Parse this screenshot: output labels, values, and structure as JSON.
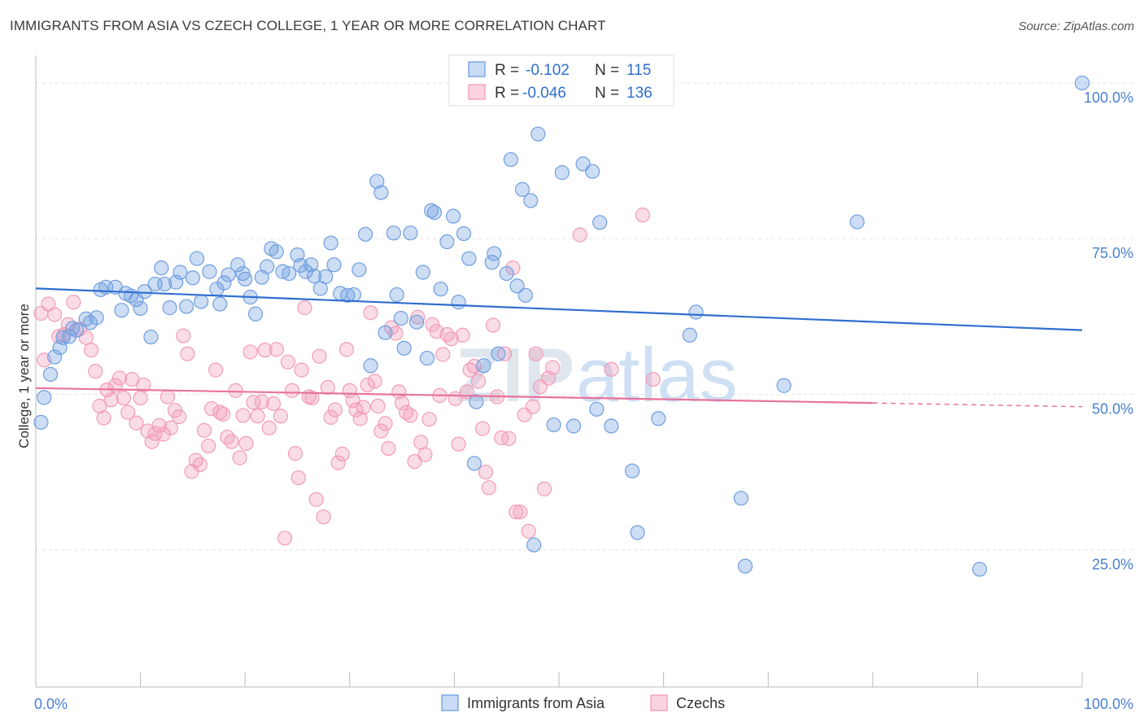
{
  "title": "IMMIGRANTS FROM ASIA VS CZECH COLLEGE, 1 YEAR OR MORE CORRELATION CHART",
  "source": "Source: ZipAtlas.com",
  "colors": {
    "blue": "#6f9fe0",
    "blue_line": "#2f6fd0",
    "pink": "#f29cb8",
    "pink_line": "#e8739b",
    "tick_text": "#4a7fd0"
  },
  "legend": {
    "rows": [
      {
        "r_label": "R =",
        "r_value": "-0.102",
        "n_label": "N =",
        "n_value": "115"
      },
      {
        "r_label": "R =",
        "r_value": "-0.046",
        "n_label": "N =",
        "n_value": "136"
      }
    ]
  },
  "watermark": {
    "zip": "ZIP",
    "atlas": "atlas"
  },
  "chart_data": {
    "type": "scatter",
    "title": "IMMIGRANTS FROM ASIA VS CZECH COLLEGE, 1 YEAR OR MORE CORRELATION CHART",
    "xlabel": "",
    "ylabel": "College, 1 year or more",
    "xlim": [
      0,
      100
    ],
    "ylim": [
      3,
      103
    ],
    "x_tick_labels": [
      {
        "value": 0,
        "label": "0.0%"
      },
      {
        "value": 100,
        "label": "100.0%"
      }
    ],
    "y_tick_labels": [
      {
        "value": 25,
        "label": "25.0%"
      },
      {
        "value": 50,
        "label": "50.0%"
      },
      {
        "value": 75,
        "label": "75.0%"
      },
      {
        "value": 100,
        "label": "100.0%"
      }
    ],
    "grid": true,
    "legend_position": "top-center",
    "series": [
      {
        "name": "Immigrants from Asia",
        "color": "#6f9fe0",
        "trend": {
          "x": [
            0,
            100
          ],
          "y": [
            67,
            60.3
          ]
        },
        "points": [
          [
            0.5,
            45.5
          ],
          [
            0.8,
            49.5
          ],
          [
            1.4,
            53.2
          ],
          [
            1.8,
            56
          ],
          [
            2.3,
            57.5
          ],
          [
            2.6,
            59.1
          ],
          [
            3.2,
            59.3
          ],
          [
            3.5,
            60.6
          ],
          [
            3.9,
            60.3
          ],
          [
            4.8,
            62.1
          ],
          [
            5.2,
            61.5
          ],
          [
            5.8,
            62.3
          ],
          [
            6.2,
            66.8
          ],
          [
            6.7,
            67.2
          ],
          [
            7.6,
            67.2
          ],
          [
            8.2,
            63.5
          ],
          [
            8.6,
            66.2
          ],
          [
            9.1,
            65.8
          ],
          [
            9.6,
            65.2
          ],
          [
            10,
            63.8
          ],
          [
            10.4,
            66.5
          ],
          [
            11,
            59.2
          ],
          [
            11.4,
            67.7
          ],
          [
            12,
            70.3
          ],
          [
            12.3,
            67.7
          ],
          [
            12.8,
            63.9
          ],
          [
            13.4,
            68
          ],
          [
            13.8,
            69.6
          ],
          [
            14.4,
            64.1
          ],
          [
            15,
            68.7
          ],
          [
            15.4,
            71.8
          ],
          [
            15.8,
            64.9
          ],
          [
            16.6,
            69.7
          ],
          [
            17.3,
            66.9
          ],
          [
            17.6,
            64.5
          ],
          [
            18,
            67.9
          ],
          [
            18.4,
            69.2
          ],
          [
            19.3,
            70.8
          ],
          [
            19.8,
            69.4
          ],
          [
            20,
            68.5
          ],
          [
            20.5,
            65.6
          ],
          [
            21,
            62.9
          ],
          [
            21.6,
            68.8
          ],
          [
            22.1,
            70.5
          ],
          [
            22.5,
            73.4
          ],
          [
            23,
            72.9
          ],
          [
            23.6,
            69.7
          ],
          [
            24.2,
            69.4
          ],
          [
            25,
            72.4
          ],
          [
            25.3,
            70.7
          ],
          [
            25.8,
            69.7
          ],
          [
            26.3,
            70.8
          ],
          [
            26.6,
            69
          ],
          [
            27.2,
            67
          ],
          [
            27.7,
            68.9
          ],
          [
            28.2,
            74.3
          ],
          [
            28.5,
            70.8
          ],
          [
            29.1,
            66.2
          ],
          [
            29.8,
            65.9
          ],
          [
            30.4,
            66
          ],
          [
            30.9,
            70
          ],
          [
            31.5,
            75.7
          ],
          [
            32,
            54.6
          ],
          [
            32.6,
            84.2
          ],
          [
            33,
            82.4
          ],
          [
            33.4,
            59.9
          ],
          [
            34.2,
            75.9
          ],
          [
            34.5,
            66
          ],
          [
            34.9,
            62.2
          ],
          [
            35.2,
            57.4
          ],
          [
            35.8,
            75.9
          ],
          [
            36.4,
            61.6
          ],
          [
            37,
            69.6
          ],
          [
            37.4,
            55.8
          ],
          [
            37.8,
            79.5
          ],
          [
            38.1,
            79.2
          ],
          [
            38.7,
            66.9
          ],
          [
            39.3,
            74.5
          ],
          [
            39.9,
            78.6
          ],
          [
            40.4,
            64.8
          ],
          [
            40.9,
            75.8
          ],
          [
            41.4,
            71.8
          ],
          [
            41.9,
            38.9
          ],
          [
            42.1,
            48.8
          ],
          [
            42.8,
            54.6
          ],
          [
            43.6,
            71.2
          ],
          [
            43.8,
            72.6
          ],
          [
            44.2,
            56.5
          ],
          [
            45,
            69.4
          ],
          [
            45.4,
            87.7
          ],
          [
            46,
            67.4
          ],
          [
            46.5,
            82.9
          ],
          [
            46.8,
            65.9
          ],
          [
            47.3,
            81.1
          ],
          [
            47.6,
            25.8
          ],
          [
            48,
            91.8
          ],
          [
            49.5,
            45.1
          ],
          [
            50.3,
            85.6
          ],
          [
            51.4,
            44.9
          ],
          [
            52.3,
            87
          ],
          [
            53.2,
            85.8
          ],
          [
            53.6,
            47.6
          ],
          [
            53.9,
            77.6
          ],
          [
            55,
            44.9
          ],
          [
            57,
            37.7
          ],
          [
            57.5,
            27.8
          ],
          [
            59.5,
            46.1
          ],
          [
            62.5,
            59.5
          ],
          [
            63.1,
            63.2
          ],
          [
            67.4,
            33.3
          ],
          [
            67.8,
            22.4
          ],
          [
            71.5,
            51.4
          ],
          [
            78.5,
            77.7
          ],
          [
            90.2,
            21.9
          ],
          [
            100,
            100
          ]
        ]
      },
      {
        "name": "Czechs",
        "color": "#f29cb8",
        "trend": {
          "x": [
            0,
            80
          ],
          "y": [
            51,
            48.6
          ]
        },
        "trend_dashed": {
          "x": [
            80,
            100
          ],
          "y": [
            48.6,
            48
          ]
        },
        "points": [
          [
            0.5,
            63
          ],
          [
            0.8,
            55.5
          ],
          [
            1.2,
            64.5
          ],
          [
            1.8,
            62.8
          ],
          [
            2.2,
            59.3
          ],
          [
            2.7,
            59.6
          ],
          [
            3.1,
            61.2
          ],
          [
            3.6,
            64.8
          ],
          [
            4.2,
            60.5
          ],
          [
            4.8,
            59.1
          ],
          [
            5.3,
            57.1
          ],
          [
            5.7,
            53.7
          ],
          [
            6.1,
            48.1
          ],
          [
            6.5,
            46.2
          ],
          [
            6.8,
            50.7
          ],
          [
            7.2,
            49.1
          ],
          [
            7.6,
            51.4
          ],
          [
            8,
            52.6
          ],
          [
            8.4,
            49.4
          ],
          [
            8.8,
            47.1
          ],
          [
            9.2,
            52.4
          ],
          [
            9.6,
            45.4
          ],
          [
            10,
            49.4
          ],
          [
            10.3,
            51.5
          ],
          [
            10.7,
            44.1
          ],
          [
            11.1,
            42.4
          ],
          [
            11.4,
            43.7
          ],
          [
            11.8,
            45
          ],
          [
            12.2,
            43.6
          ],
          [
            12.6,
            49.6
          ],
          [
            12.9,
            44.6
          ],
          [
            13.3,
            47.4
          ],
          [
            13.7,
            46.4
          ],
          [
            14.1,
            59.4
          ],
          [
            14.5,
            56.5
          ],
          [
            14.9,
            37.6
          ],
          [
            15.3,
            39.4
          ],
          [
            15.7,
            38.7
          ],
          [
            16.1,
            44.2
          ],
          [
            16.5,
            41.7
          ],
          [
            16.8,
            47.7
          ],
          [
            17.2,
            53.9
          ],
          [
            17.6,
            47.1
          ],
          [
            17.9,
            46.8
          ],
          [
            18.3,
            43.1
          ],
          [
            18.7,
            42.4
          ],
          [
            19.1,
            50.6
          ],
          [
            19.5,
            39.8
          ],
          [
            19.8,
            46.6
          ],
          [
            20.1,
            42.1
          ],
          [
            20.5,
            56.8
          ],
          [
            20.8,
            48.7
          ],
          [
            21.2,
            46.5
          ],
          [
            21.6,
            48.8
          ],
          [
            21.9,
            57.1
          ],
          [
            22.3,
            44.6
          ],
          [
            22.7,
            48.5
          ],
          [
            23,
            57.2
          ],
          [
            23.4,
            46.5
          ],
          [
            23.8,
            26.9
          ],
          [
            24.1,
            55.2
          ],
          [
            24.5,
            50.6
          ],
          [
            24.8,
            40.5
          ],
          [
            25.1,
            36.6
          ],
          [
            25.4,
            53.9
          ],
          [
            25.7,
            63.9
          ],
          [
            26.1,
            49.6
          ],
          [
            26.4,
            49.4
          ],
          [
            26.8,
            33.1
          ],
          [
            27.1,
            56.1
          ],
          [
            27.5,
            30.3
          ],
          [
            27.9,
            51.1
          ],
          [
            28.2,
            46.3
          ],
          [
            28.6,
            47.5
          ],
          [
            28.9,
            39
          ],
          [
            29.3,
            40.4
          ],
          [
            29.7,
            57.2
          ],
          [
            30,
            50.6
          ],
          [
            30.3,
            49
          ],
          [
            30.6,
            47.5
          ],
          [
            31,
            46.1
          ],
          [
            31.3,
            47.9
          ],
          [
            31.7,
            51.5
          ],
          [
            32,
            63.1
          ],
          [
            32.4,
            52.1
          ],
          [
            32.7,
            48.1
          ],
          [
            33,
            44.1
          ],
          [
            33.4,
            45.3
          ],
          [
            33.7,
            41.3
          ],
          [
            34,
            60.7
          ],
          [
            34.4,
            59.8
          ],
          [
            34.7,
            50.4
          ],
          [
            35,
            48.6
          ],
          [
            35.4,
            47.1
          ],
          [
            35.8,
            46.6
          ],
          [
            36.2,
            39.2
          ],
          [
            36.5,
            62.4
          ],
          [
            36.8,
            42.3
          ],
          [
            37.2,
            40.3
          ],
          [
            37.6,
            46
          ],
          [
            37.9,
            61.2
          ],
          [
            38.3,
            60.1
          ],
          [
            38.6,
            49.8
          ],
          [
            38.9,
            56.4
          ],
          [
            39.3,
            59.6
          ],
          [
            39.7,
            58.9
          ],
          [
            40.1,
            49.3
          ],
          [
            40.4,
            42
          ],
          [
            40.8,
            59.5
          ],
          [
            41.2,
            50.4
          ],
          [
            41.5,
            53.9
          ],
          [
            41.9,
            54.5
          ],
          [
            42.3,
            52.1
          ],
          [
            42.7,
            44.5
          ],
          [
            43,
            37.5
          ],
          [
            43.3,
            35
          ],
          [
            43.7,
            61.1
          ],
          [
            44.1,
            49.6
          ],
          [
            44.5,
            43
          ],
          [
            44.8,
            56.5
          ],
          [
            45.2,
            42.9
          ],
          [
            45.6,
            70.3
          ],
          [
            45.9,
            31.1
          ],
          [
            46.3,
            31.1
          ],
          [
            46.7,
            46.7
          ],
          [
            47.1,
            28
          ],
          [
            47.5,
            48
          ],
          [
            47.8,
            56.5
          ],
          [
            48.2,
            51.2
          ],
          [
            48.6,
            34.8
          ],
          [
            49,
            52.6
          ],
          [
            49.4,
            54.3
          ],
          [
            52,
            75.6
          ],
          [
            55,
            54
          ],
          [
            58,
            78.8
          ],
          [
            59,
            52.4
          ]
        ]
      }
    ]
  }
}
